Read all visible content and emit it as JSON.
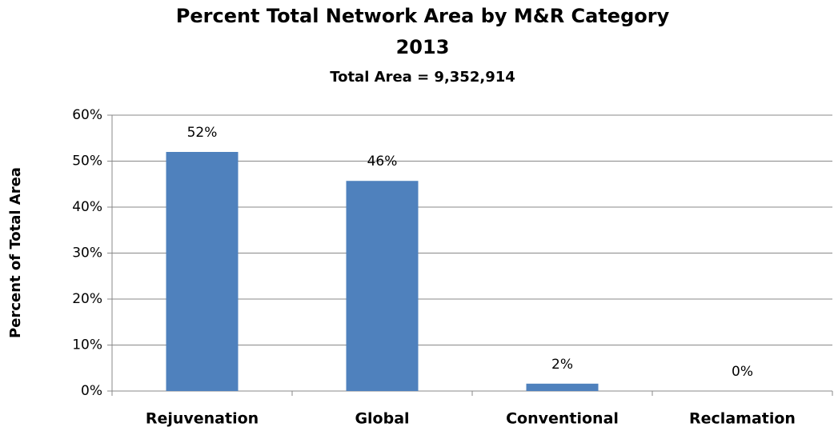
{
  "chart_data": {
    "type": "bar",
    "title": "Percent Total Network Area by M&R Category",
    "title2": "2013",
    "subtitle": "Total Area = 9,352,914",
    "y_label": "Percent of Total Area",
    "categories": [
      "Rejuvenation",
      "Global",
      "Conventional",
      "Reclamation"
    ],
    "values": [
      52,
      45.7,
      1.6,
      0
    ],
    "value_labels": [
      "52%",
      "46%",
      "2%",
      "0%"
    ],
    "color": "#4f81bd",
    "ylim": [
      0,
      60
    ],
    "yticks": [
      {
        "value": 0,
        "label": "0%"
      },
      {
        "value": 10,
        "label": "10%"
      },
      {
        "value": 20,
        "label": "20%"
      },
      {
        "value": 30,
        "label": "30%"
      },
      {
        "value": 40,
        "label": "40%"
      },
      {
        "value": 50,
        "label": "50%"
      },
      {
        "value": 60,
        "label": "60%"
      }
    ],
    "grid": true
  }
}
